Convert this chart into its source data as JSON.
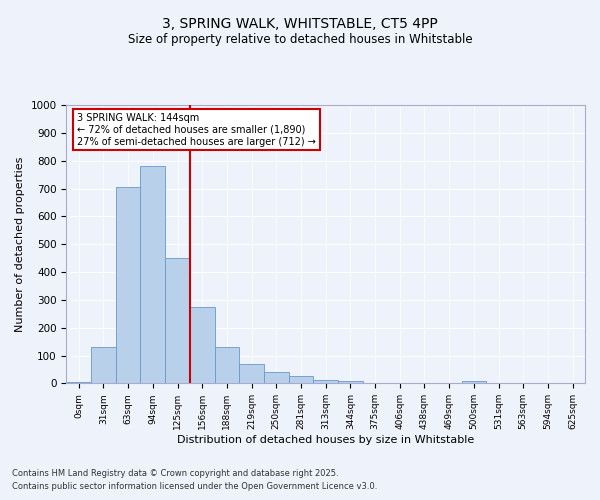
{
  "title_line1": "3, SPRING WALK, WHITSTABLE, CT5 4PP",
  "title_line2": "Size of property relative to detached houses in Whitstable",
  "xlabel": "Distribution of detached houses by size in Whitstable",
  "ylabel": "Number of detached properties",
  "bin_labels": [
    "0sqm",
    "31sqm",
    "63sqm",
    "94sqm",
    "125sqm",
    "156sqm",
    "188sqm",
    "219sqm",
    "250sqm",
    "281sqm",
    "313sqm",
    "344sqm",
    "375sqm",
    "406sqm",
    "438sqm",
    "469sqm",
    "500sqm",
    "531sqm",
    "563sqm",
    "594sqm",
    "625sqm"
  ],
  "bar_values": [
    5,
    130,
    705,
    780,
    450,
    275,
    132,
    68,
    40,
    25,
    12,
    10,
    2,
    0,
    0,
    0,
    8,
    0,
    0,
    0,
    0
  ],
  "bar_color": "#b8d0ea",
  "bar_edge_color": "#6699cc",
  "property_line_x": 4.5,
  "annotation_text1": "3 SPRING WALK: 144sqm",
  "annotation_text2": "← 72% of detached houses are smaller (1,890)",
  "annotation_text3": "27% of semi-detached houses are larger (712) →",
  "annotation_box_color": "#ffffff",
  "annotation_box_edge_color": "#cc0000",
  "vline_color": "#cc0000",
  "ylim": [
    0,
    1000
  ],
  "yticks": [
    0,
    100,
    200,
    300,
    400,
    500,
    600,
    700,
    800,
    900,
    1000
  ],
  "bg_color": "#eef2fa",
  "grid_color": "#ffffff",
  "footnote1": "Contains HM Land Registry data © Crown copyright and database right 2025.",
  "footnote2": "Contains public sector information licensed under the Open Government Licence v3.0."
}
